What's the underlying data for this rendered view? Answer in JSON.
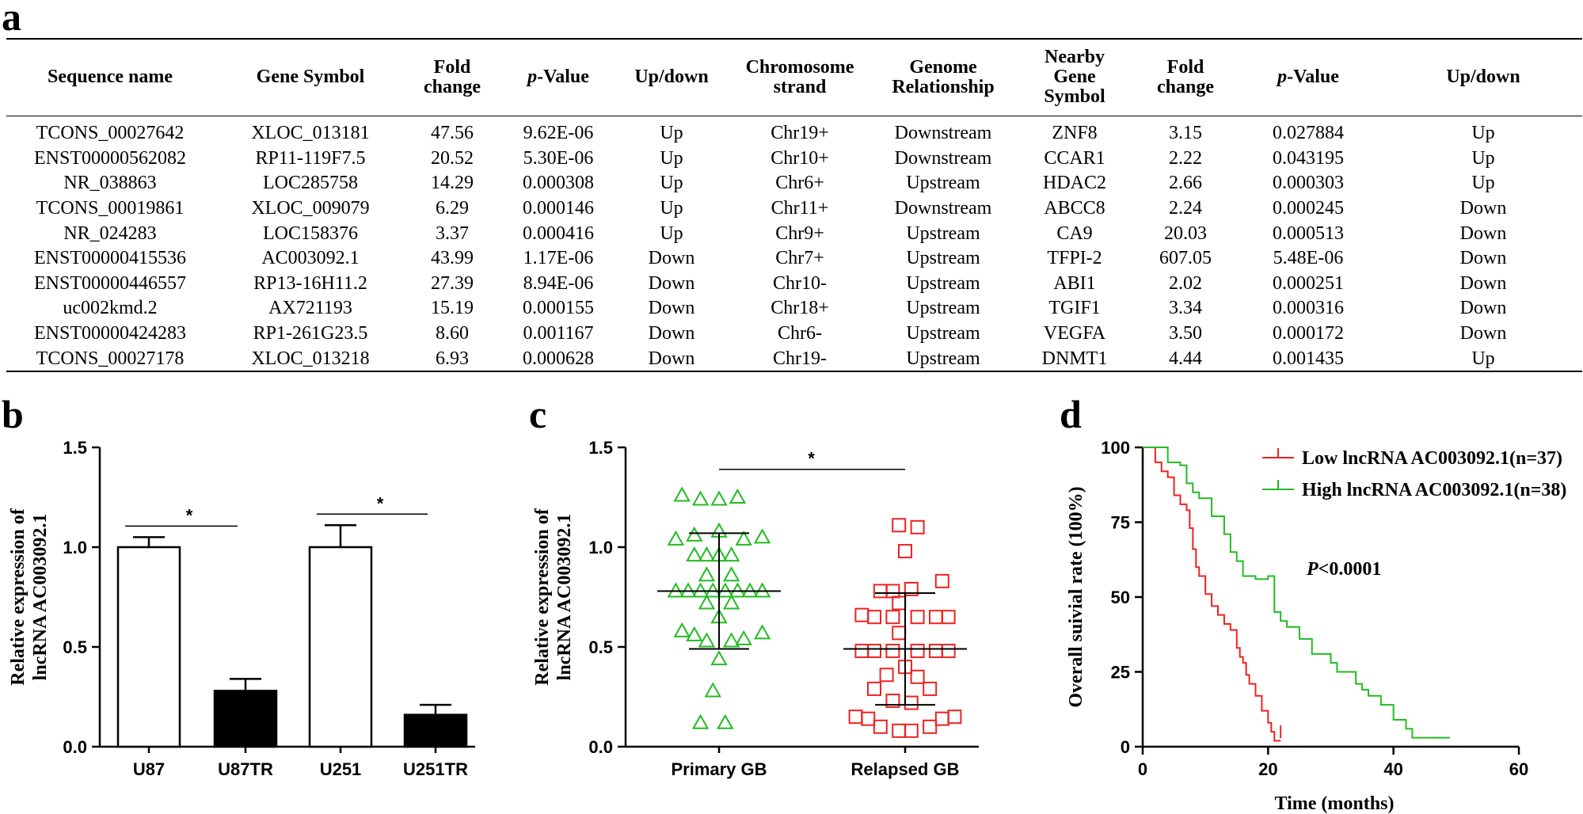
{
  "panels": {
    "a": "a",
    "b": "b",
    "c": "c",
    "d": "d"
  },
  "table": {
    "headers": {
      "seq": "Sequence name",
      "gene": "Gene Symbol",
      "fold1_l1": "Fold",
      "fold1_l2": "change",
      "p1_it": "p",
      "p1_rest": "-Value",
      "updown1": "Up/down",
      "chr_l1": "Chromosome",
      "chr_l2": "strand",
      "genome_l1": "Genome",
      "genome_l2": "Relationship",
      "nearby_l1": "Nearby",
      "nearby_l2": "Gene",
      "nearby_l3": "Symbol",
      "fold2_l1": "Fold",
      "fold2_l2": "change",
      "p2_it": "p",
      "p2_rest": "-Value",
      "updown2": "Up/down"
    },
    "rows": [
      [
        "TCONS_00027642",
        "XLOC_013181",
        "47.56",
        "9.62E-06",
        "Up",
        "Chr19+",
        "Downstream",
        "ZNF8",
        "3.15",
        "0.027884",
        "Up"
      ],
      [
        "ENST00000562082",
        "RP11-119F7.5",
        "20.52",
        "5.30E-06",
        "Up",
        "Chr10+",
        "Downstream",
        "CCAR1",
        "2.22",
        "0.043195",
        "Up"
      ],
      [
        "NR_038863",
        "LOC285758",
        "14.29",
        "0.000308",
        "Up",
        "Chr6+",
        "Upstream",
        "HDAC2",
        "2.66",
        "0.000303",
        "Up"
      ],
      [
        "TCONS_00019861",
        "XLOC_009079",
        "6.29",
        "0.000146",
        "Up",
        "Chr11+",
        "Downstream",
        "ABCC8",
        "2.24",
        "0.000245",
        "Down"
      ],
      [
        "NR_024283",
        "LOC158376",
        "3.37",
        "0.000416",
        "Up",
        "Chr9+",
        "Upstream",
        "CA9",
        "20.03",
        "0.000513",
        "Down"
      ],
      [
        "ENST00000415536",
        "AC003092.1",
        "43.99",
        "1.17E-06",
        "Down",
        "Chr7+",
        "Upstream",
        "TFPI-2",
        "607.05",
        "5.48E-06",
        "Down"
      ],
      [
        "ENST00000446557",
        "RP13-16H11.2",
        "27.39",
        "8.94E-06",
        "Down",
        "Chr10-",
        "Upstream",
        "ABI1",
        "2.02",
        "0.000251",
        "Down"
      ],
      [
        "uc002kmd.2",
        "AX721193",
        "15.19",
        "0.000155",
        "Down",
        "Chr18+",
        "Upstream",
        "TGIF1",
        "3.34",
        "0.000316",
        "Down"
      ],
      [
        "ENST00000424283",
        "RP1-261G23.5",
        "8.60",
        "0.001167",
        "Down",
        "Chr6-",
        "Upstream",
        "VEGFA",
        "3.50",
        "0.000172",
        "Down"
      ],
      [
        "TCONS_00027178",
        "XLOC_013218",
        "6.93",
        "0.000628",
        "Down",
        "Chr19-",
        "Upstream",
        "DNMT1",
        "4.44",
        "0.001435",
        "Up"
      ]
    ]
  },
  "chart_data": [
    {
      "panel": "b",
      "type": "bar",
      "ylabel_l1": "Relative expression of",
      "ylabel_l2": "lncRNA AC003092.1",
      "ylim": [
        0,
        1.5
      ],
      "yticks": [
        "0.0",
        "0.5",
        "1.0",
        "1.5"
      ],
      "categories": [
        "U87",
        "U87TR",
        "U251",
        "U251TR"
      ],
      "values": [
        1.0,
        0.28,
        1.0,
        0.16
      ],
      "errors": [
        0.05,
        0.06,
        0.11,
        0.05
      ],
      "fills": [
        "#ffffff",
        "#000000",
        "#ffffff",
        "#000000"
      ],
      "significance": [
        {
          "pair": [
            0,
            1
          ],
          "label": "*"
        },
        {
          "pair": [
            2,
            3
          ],
          "label": "*"
        }
      ]
    },
    {
      "panel": "c",
      "type": "scatter",
      "ylabel_l1": "Relative expression of",
      "ylabel_l2": "lncRNA AC003092.1",
      "ylim": [
        0,
        1.5
      ],
      "yticks": [
        "0.0",
        "0.5",
        "1.0",
        "1.5"
      ],
      "categories": [
        "Primary GB",
        "Relapsed GB"
      ],
      "significance_label": "*",
      "series": [
        {
          "name": "Primary GB",
          "marker": "triangle",
          "color": "#22bb22",
          "mean": 0.78,
          "sd_low": 0.49,
          "sd_high": 1.07,
          "points": [
            {
              "dx": -0.06,
              "y": 1.26
            },
            {
              "dx": -0.03,
              "y": 1.24
            },
            {
              "dx": 0.0,
              "y": 1.24
            },
            {
              "dx": 0.03,
              "y": 1.25
            },
            {
              "dx": -0.07,
              "y": 1.04
            },
            {
              "dx": -0.04,
              "y": 1.06
            },
            {
              "dx": 0.0,
              "y": 1.08
            },
            {
              "dx": 0.04,
              "y": 1.04
            },
            {
              "dx": 0.07,
              "y": 1.05
            },
            {
              "dx": -0.04,
              "y": 0.96
            },
            {
              "dx": -0.02,
              "y": 0.96
            },
            {
              "dx": 0.0,
              "y": 0.96
            },
            {
              "dx": 0.02,
              "y": 0.96
            },
            {
              "dx": -0.02,
              "y": 0.86
            },
            {
              "dx": 0.02,
              "y": 0.86
            },
            {
              "dx": -0.07,
              "y": 0.78
            },
            {
              "dx": -0.05,
              "y": 0.78
            },
            {
              "dx": -0.03,
              "y": 0.78
            },
            {
              "dx": -0.01,
              "y": 0.78
            },
            {
              "dx": 0.01,
              "y": 0.78
            },
            {
              "dx": 0.03,
              "y": 0.78
            },
            {
              "dx": 0.05,
              "y": 0.78
            },
            {
              "dx": 0.07,
              "y": 0.78
            },
            {
              "dx": -0.02,
              "y": 0.72
            },
            {
              "dx": 0.02,
              "y": 0.72
            },
            {
              "dx": 0.0,
              "y": 0.65
            },
            {
              "dx": -0.06,
              "y": 0.58
            },
            {
              "dx": -0.04,
              "y": 0.56
            },
            {
              "dx": -0.02,
              "y": 0.53
            },
            {
              "dx": 0.02,
              "y": 0.53
            },
            {
              "dx": 0.04,
              "y": 0.54
            },
            {
              "dx": 0.07,
              "y": 0.57
            },
            {
              "dx": 0.0,
              "y": 0.44
            },
            {
              "dx": -0.01,
              "y": 0.28
            },
            {
              "dx": -0.03,
              "y": 0.12
            },
            {
              "dx": 0.01,
              "y": 0.12
            }
          ]
        },
        {
          "name": "Relapsed GB",
          "marker": "square",
          "color": "#ee2222",
          "mean": 0.49,
          "sd_low": 0.21,
          "sd_high": 0.77,
          "points": [
            {
              "dx": -0.01,
              "y": 1.11
            },
            {
              "dx": 0.02,
              "y": 1.1
            },
            {
              "dx": 0.0,
              "y": 0.98
            },
            {
              "dx": 0.06,
              "y": 0.83
            },
            {
              "dx": -0.04,
              "y": 0.78
            },
            {
              "dx": -0.02,
              "y": 0.78
            },
            {
              "dx": 0.01,
              "y": 0.79
            },
            {
              "dx": -0.01,
              "y": 0.72
            },
            {
              "dx": -0.07,
              "y": 0.66
            },
            {
              "dx": -0.05,
              "y": 0.65
            },
            {
              "dx": -0.02,
              "y": 0.65
            },
            {
              "dx": 0.02,
              "y": 0.65
            },
            {
              "dx": 0.05,
              "y": 0.65
            },
            {
              "dx": 0.07,
              "y": 0.65
            },
            {
              "dx": -0.01,
              "y": 0.57
            },
            {
              "dx": -0.07,
              "y": 0.48
            },
            {
              "dx": -0.05,
              "y": 0.48
            },
            {
              "dx": -0.02,
              "y": 0.48
            },
            {
              "dx": 0.02,
              "y": 0.48
            },
            {
              "dx": 0.05,
              "y": 0.48
            },
            {
              "dx": 0.07,
              "y": 0.48
            },
            {
              "dx": 0.0,
              "y": 0.4
            },
            {
              "dx": -0.03,
              "y": 0.36
            },
            {
              "dx": 0.02,
              "y": 0.35
            },
            {
              "dx": -0.05,
              "y": 0.29
            },
            {
              "dx": 0.04,
              "y": 0.29
            },
            {
              "dx": -0.02,
              "y": 0.23
            },
            {
              "dx": 0.01,
              "y": 0.22
            },
            {
              "dx": -0.08,
              "y": 0.15
            },
            {
              "dx": -0.06,
              "y": 0.14
            },
            {
              "dx": 0.06,
              "y": 0.14
            },
            {
              "dx": 0.08,
              "y": 0.15
            },
            {
              "dx": -0.04,
              "y": 0.1
            },
            {
              "dx": -0.01,
              "y": 0.08
            },
            {
              "dx": 0.01,
              "y": 0.08
            },
            {
              "dx": 0.04,
              "y": 0.1
            }
          ]
        }
      ]
    },
    {
      "panel": "d",
      "type": "line",
      "ylabel": "Overall suivial rate (100%)",
      "xlabel": "Time (months)",
      "xlim": [
        0,
        60
      ],
      "ylim": [
        0,
        100
      ],
      "xticks": [
        "0",
        "20",
        "40",
        "60"
      ],
      "yticks": [
        "0",
        "25",
        "50",
        "75",
        "100"
      ],
      "p_text_it": "P",
      "p_text_rest": "<0.0001",
      "series": [
        {
          "name": "Low lncRNA AC003092.1(n=37)",
          "color": "#ee2222",
          "steps": [
            [
              0,
              100
            ],
            [
              1.5,
              100
            ],
            [
              2,
              95
            ],
            [
              3,
              92
            ],
            [
              4,
              90
            ],
            [
              5,
              84
            ],
            [
              6,
              81
            ],
            [
              7,
              79
            ],
            [
              7.5,
              73
            ],
            [
              8,
              66
            ],
            [
              8.5,
              60
            ],
            [
              9,
              57
            ],
            [
              10,
              51
            ],
            [
              11,
              47
            ],
            [
              12,
              44
            ],
            [
              13,
              41
            ],
            [
              14,
              39
            ],
            [
              15,
              33
            ],
            [
              15.5,
              30
            ],
            [
              16,
              28
            ],
            [
              16.5,
              24
            ],
            [
              17,
              21
            ],
            [
              18,
              17
            ],
            [
              19,
              12
            ],
            [
              20,
              8
            ],
            [
              20.5,
              5
            ],
            [
              21,
              2
            ],
            [
              22,
              2
            ]
          ],
          "censor": [
            [
              22,
              5
            ]
          ]
        },
        {
          "name": "High lncRNA AC003092.1(n=38)",
          "color": "#22bb22",
          "steps": [
            [
              0,
              100
            ],
            [
              3,
              100
            ],
            [
              4,
              95
            ],
            [
              6,
              94
            ],
            [
              7,
              88
            ],
            [
              8,
              85
            ],
            [
              9,
              83
            ],
            [
              11,
              77
            ],
            [
              13,
              71
            ],
            [
              14,
              65
            ],
            [
              15,
              62
            ],
            [
              16,
              57
            ],
            [
              18,
              56
            ],
            [
              20,
              57
            ],
            [
              21,
              45
            ],
            [
              22,
              42
            ],
            [
              23,
              40
            ],
            [
              25,
              36
            ],
            [
              27,
              31
            ],
            [
              30,
              28
            ],
            [
              31,
              25
            ],
            [
              34,
              21
            ],
            [
              35,
              19
            ],
            [
              36,
              17
            ],
            [
              38,
              14
            ],
            [
              40,
              9
            ],
            [
              42,
              6
            ],
            [
              43,
              3
            ],
            [
              49,
              3
            ]
          ],
          "censor": []
        }
      ]
    }
  ]
}
